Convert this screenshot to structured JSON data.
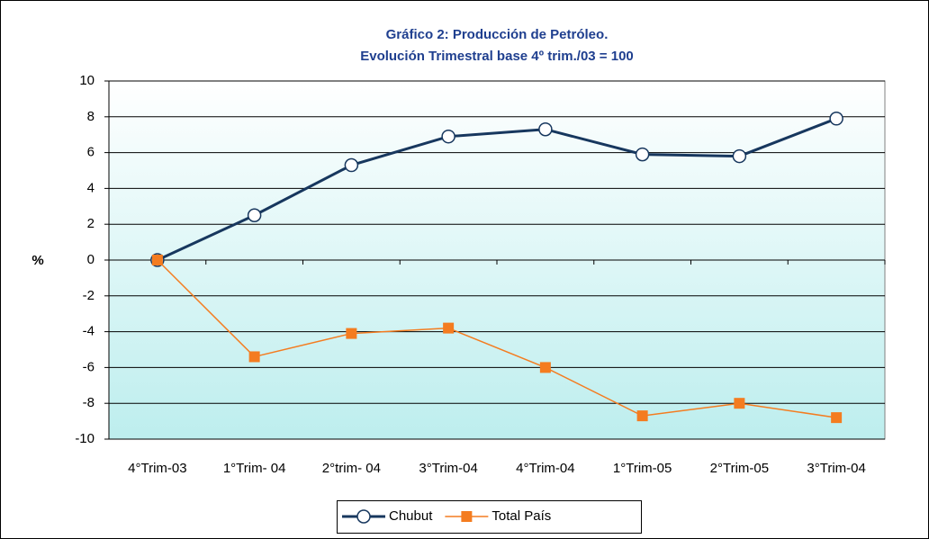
{
  "chart_data": {
    "type": "line",
    "title": "Gráfico 2: Producción de Petróleo.",
    "subtitle": "Evolución Trimestral base 4º trim./03 = 100",
    "y_label": "%",
    "categories": [
      "4°Trim-03",
      "1°Trim- 04",
      "2°trim- 04",
      "3°Trim-04",
      "4°Trim-04",
      "1°Trim-05",
      "2°Trim-05",
      "3°Trim-04"
    ],
    "series": [
      {
        "name": "Chubut",
        "color": "#17375e",
        "marker": "circle",
        "values": [
          0,
          2.5,
          5.3,
          6.9,
          7.3,
          5.9,
          5.8,
          7.9
        ]
      },
      {
        "name": "Total País",
        "color": "#f47c20",
        "marker": "square",
        "values": [
          0,
          -5.4,
          -4.1,
          -3.8,
          -6.0,
          -8.7,
          -8.0,
          -8.8
        ]
      }
    ],
    "ylim": [
      -10,
      10
    ],
    "yticks": [
      -10,
      -8,
      -6,
      -4,
      -2,
      0,
      2,
      4,
      6,
      8,
      10
    ],
    "grid": true,
    "legend": "bottom"
  }
}
